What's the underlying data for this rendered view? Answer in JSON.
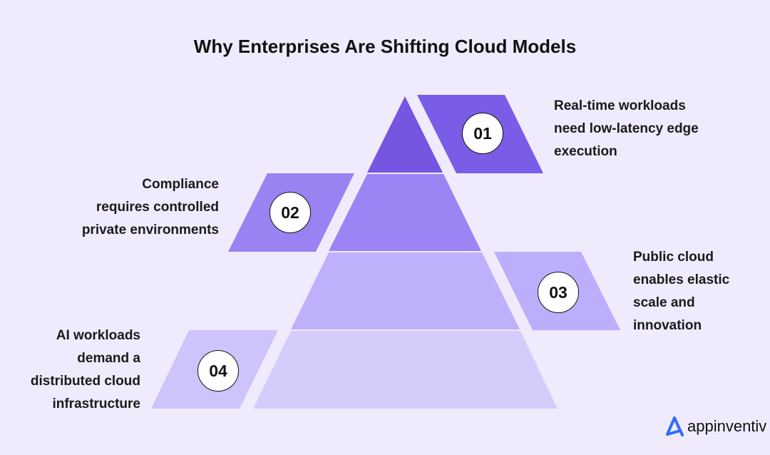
{
  "title": "Why Enterprises Are Shifting Cloud Models",
  "colors": {
    "background": "#efebfd",
    "layer1": "#7656e0",
    "layer2": "#9d84f4",
    "layer3": "#bfb0fb",
    "layer4": "#d6ccfc",
    "logo": "#2f6bff"
  },
  "items": [
    {
      "number": "01",
      "lines": [
        "Real-time workloads",
        "need low-latency edge",
        "execution"
      ]
    },
    {
      "number": "02",
      "lines": [
        "Compliance",
        "requires controlled",
        "private environments"
      ]
    },
    {
      "number": "03",
      "lines": [
        "Public cloud",
        "enables elastic",
        "scale and",
        "innovation"
      ]
    },
    {
      "number": "04",
      "lines": [
        "AI workloads",
        "demand a",
        "distributed cloud",
        "infrastructure"
      ]
    }
  ],
  "logo": {
    "text": "appinventiv",
    "icon": "appinventiv-logo-icon"
  }
}
